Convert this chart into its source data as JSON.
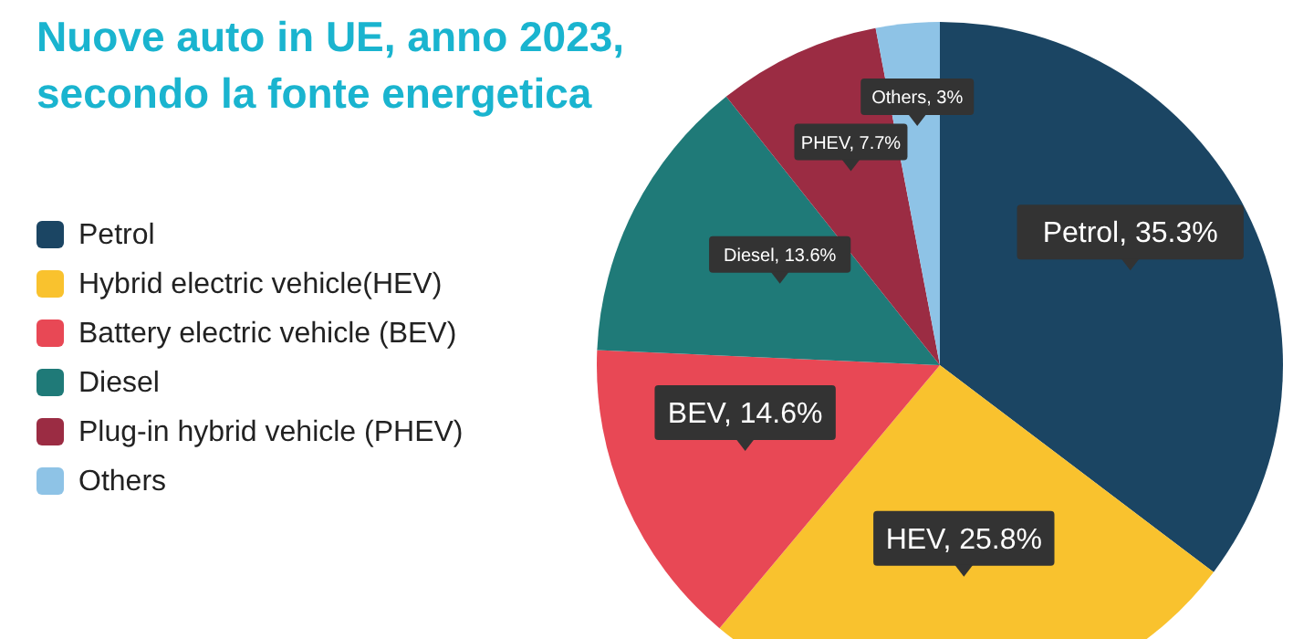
{
  "chart_data": {
    "type": "pie",
    "title": "Nuove auto in UE, anno 2023, secondo la fonte energetica",
    "categories": [
      "Petrol",
      "Hybrid electric vehicle(HEV)",
      "Battery electric vehicle (BEV)",
      "Diesel",
      "Plug-in hybrid vehicle (PHEV)",
      "Others"
    ],
    "values": [
      35.3,
      25.8,
      14.6,
      13.6,
      7.7,
      3
    ],
    "value_labels": [
      "Petrol, 35.3%",
      "HEV, 25.8%",
      "BEV, 14.6%",
      "Diesel, 13.6%",
      "PHEV, 7.7%",
      "Others, 3%"
    ],
    "colors": [
      "#1b4563",
      "#f9c22e",
      "#e84855",
      "#1f7a78",
      "#9b2c43",
      "#8ec3e6"
    ],
    "legend": "left"
  }
}
